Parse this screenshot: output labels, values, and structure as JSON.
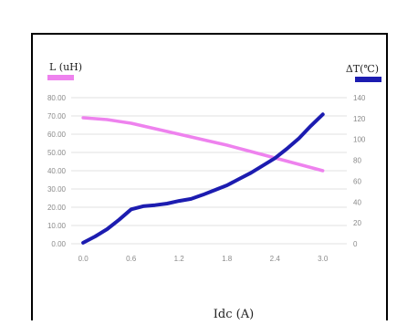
{
  "chart_data": {
    "type": "line",
    "title": "",
    "xlabel": "Idc (A)",
    "x_ticks": [
      "0.0",
      "0.6",
      "1.2",
      "1.8",
      "2.4",
      "3.0"
    ],
    "xlim": [
      -0.15,
      3.3
    ],
    "y_left": {
      "label": "L (uH)",
      "ticks": [
        "0.00",
        "10.00",
        "20.00",
        "30.00",
        "40.00",
        "50.00",
        "60.00",
        "70.00",
        "80.00"
      ],
      "ylim": [
        0,
        80
      ]
    },
    "y_right": {
      "label": "ΔT(℃)",
      "ticks": [
        "0",
        "20",
        "40",
        "60",
        "80",
        "100",
        "120",
        "140"
      ],
      "ylim": [
        0,
        140
      ]
    },
    "grid": "horizontal",
    "legend": "top-left and top-right",
    "series": [
      {
        "name": "L (uH)",
        "axis": "left",
        "color": "#ee82ee",
        "x": [
          0.0,
          0.3,
          0.6,
          0.9,
          1.2,
          1.5,
          1.8,
          2.1,
          2.4,
          2.7,
          3.0
        ],
        "y": [
          69,
          68,
          66,
          63,
          60,
          57,
          54,
          50.5,
          47,
          43.5,
          40
        ]
      },
      {
        "name": "ΔT(℃)",
        "axis": "right",
        "color": "#1c1cb0",
        "x": [
          0.0,
          0.15,
          0.3,
          0.45,
          0.6,
          0.75,
          0.9,
          1.05,
          1.2,
          1.35,
          1.5,
          1.65,
          1.8,
          1.95,
          2.1,
          2.25,
          2.4,
          2.55,
          2.7,
          2.85,
          3.0
        ],
        "y": [
          1,
          7,
          14,
          23,
          33,
          36,
          37,
          38.5,
          41,
          43,
          47,
          51.5,
          56,
          62,
          68,
          75,
          82,
          91,
          101,
          113,
          124
        ]
      }
    ]
  }
}
